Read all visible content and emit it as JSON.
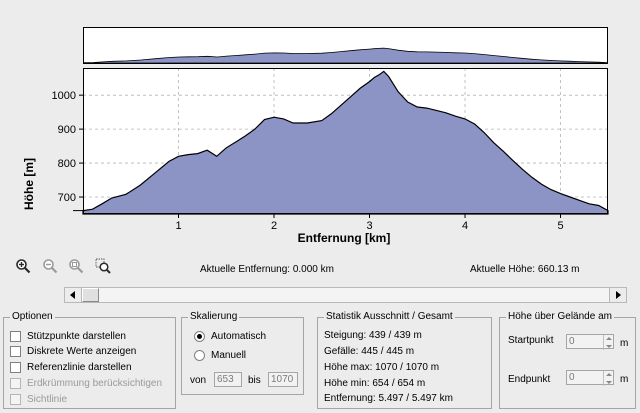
{
  "chart_data": {
    "type": "area",
    "xlabel": "Entfernung [km]",
    "ylabel": "Höhe [m]",
    "xlim": [
      0,
      5.497
    ],
    "ylim": [
      650,
      1080
    ],
    "xticks": [
      1,
      2,
      3,
      4,
      5
    ],
    "yticks": [
      700,
      800,
      900,
      1000
    ],
    "grid": true,
    "fill_color": "#8b94c5",
    "line_color": "#000000",
    "x": [
      0,
      0.1,
      0.2,
      0.3,
      0.45,
      0.6,
      0.75,
      0.9,
      1.0,
      1.1,
      1.2,
      1.3,
      1.4,
      1.5,
      1.6,
      1.7,
      1.8,
      1.9,
      2.0,
      2.1,
      2.2,
      2.35,
      2.5,
      2.6,
      2.7,
      2.8,
      2.9,
      3.0,
      3.05,
      3.1,
      3.15,
      3.2,
      3.3,
      3.4,
      3.5,
      3.6,
      3.7,
      3.8,
      3.9,
      4.0,
      4.1,
      4.2,
      4.3,
      4.4,
      4.5,
      4.6,
      4.7,
      4.8,
      4.9,
      5.0,
      5.1,
      5.2,
      5.3,
      5.4,
      5.497
    ],
    "y": [
      660,
      664,
      680,
      697,
      708,
      735,
      770,
      805,
      820,
      825,
      828,
      838,
      820,
      845,
      862,
      880,
      900,
      928,
      935,
      930,
      918,
      918,
      925,
      945,
      970,
      995,
      1020,
      1040,
      1052,
      1060,
      1070,
      1055,
      1010,
      980,
      965,
      962,
      955,
      948,
      938,
      930,
      915,
      890,
      860,
      835,
      808,
      782,
      758,
      738,
      722,
      710,
      700,
      690,
      680,
      675,
      660
    ]
  },
  "overview": {
    "fill_color": "#8b94c5"
  },
  "toolbar": {
    "icons": [
      "zoom-in-icon",
      "zoom-out-icon",
      "zoom-reset-icon",
      "zoom-selection-icon"
    ],
    "distance_label": "Aktuelle Entfernung: 0.000 km",
    "height_label": "Aktuelle Höhe: 660.13 m"
  },
  "options": {
    "title": "Optionen",
    "items": [
      {
        "label": "Stützpunkte darstellen",
        "checked": false,
        "enabled": true
      },
      {
        "label": "Diskrete Werte anzeigen",
        "checked": false,
        "enabled": true
      },
      {
        "label": "Referenzlinie darstellen",
        "checked": false,
        "enabled": true
      },
      {
        "label": "Erdkrümmung berücksichtigen",
        "checked": false,
        "enabled": false
      },
      {
        "label": "Sichtlinie",
        "checked": false,
        "enabled": false
      }
    ]
  },
  "scaling": {
    "title": "Skalierung",
    "auto_label": "Automatisch",
    "manual_label": "Manuell",
    "selected": "Automatisch",
    "from_label": "von",
    "from_value": "653",
    "to_label": "bis",
    "to_value": "1070"
  },
  "stats": {
    "title": "Statistik   Ausschnitt / Gesamt",
    "lines": [
      "Steigung: 439 / 439 m",
      "Gefälle: 445 / 445 m",
      "Höhe max: 1070 / 1070 m",
      "Höhe min: 654 / 654 m",
      "Entfernung: 5.497 / 5.497 km"
    ]
  },
  "terrain": {
    "title": "Höhe über Gelände am",
    "start_label": "Startpunkt",
    "start_value": "0",
    "end_label": "Endpunkt",
    "end_value": "0",
    "unit": "m"
  }
}
